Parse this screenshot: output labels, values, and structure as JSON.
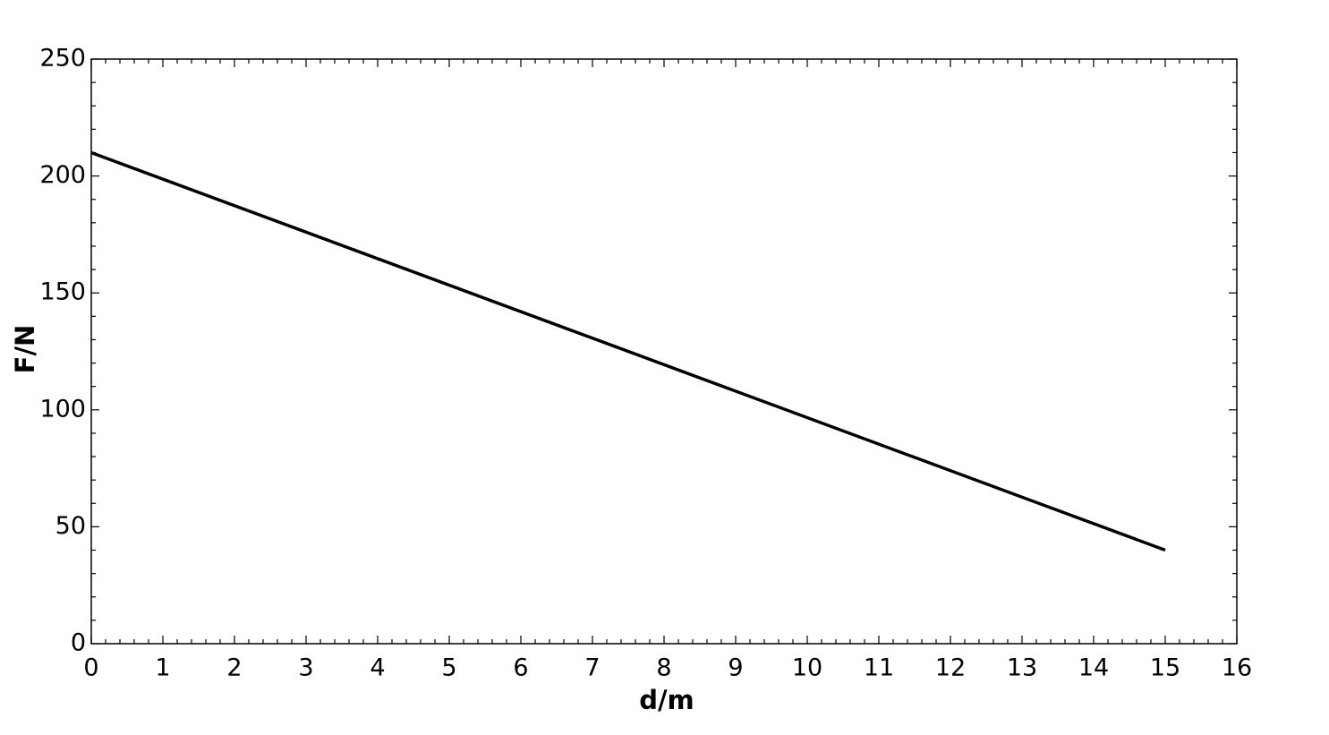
{
  "chart_data": {
    "type": "line",
    "x_label": "d/m",
    "y_label": "F/N",
    "x": [
      0,
      15
    ],
    "values": [
      210,
      40
    ],
    "color": "#000000",
    "xlim": [
      0,
      16
    ],
    "xticks": [
      0,
      1,
      2,
      3,
      4,
      5,
      6,
      7,
      8,
      9,
      10,
      11,
      12,
      13,
      14,
      15,
      16
    ],
    "ylim": [
      0,
      250
    ],
    "yticks": [
      0,
      50,
      100,
      150,
      200,
      250
    ],
    "grid": false
  }
}
